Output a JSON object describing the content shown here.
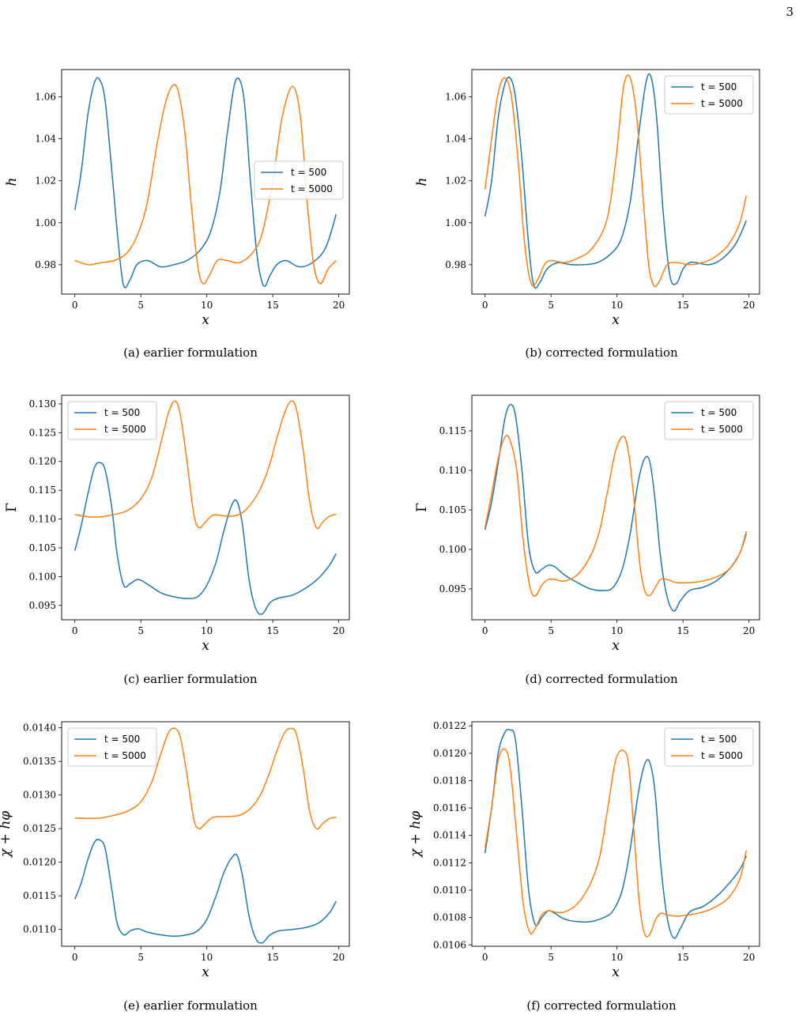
{
  "page_number": "3",
  "colors": {
    "series_500": "#1f77b4",
    "series_5000": "#ff7f0e"
  },
  "panels": [
    {
      "caption": "(a) earlier formulation",
      "ylabel": "h",
      "xlabel": "x"
    },
    {
      "caption": "(b) corrected formulation",
      "ylabel": "h",
      "xlabel": "x"
    },
    {
      "caption": "(c) earlier formulation",
      "ylabel": "Γ",
      "xlabel": "x"
    },
    {
      "caption": "(d) corrected formulation",
      "ylabel": "Γ",
      "xlabel": "x"
    },
    {
      "caption": "(e) earlier formulation",
      "ylabel": "χ + hφ",
      "xlabel": "x"
    },
    {
      "caption": "(f) corrected formulation",
      "ylabel": "χ + hφ",
      "xlabel": "x"
    }
  ],
  "chart_data": [
    {
      "type": "line",
      "xlabel": "x",
      "ylabel": "h",
      "xlim": [
        -1,
        20.8
      ],
      "ylim": [
        0.966,
        1.073
      ],
      "xticks": [
        0,
        5,
        10,
        15,
        20
      ],
      "yticks": [
        0.98,
        1.0,
        1.02,
        1.04,
        1.06
      ],
      "ytick_labels": [
        "0.98",
        "1.00",
        "1.02",
        "1.04",
        "1.06"
      ],
      "legend": "center-right",
      "series": [
        {
          "name": "t = 500",
          "x": [
            0,
            0.5,
            1,
            1.5,
            1.9,
            2.3,
            2.8,
            3.3,
            3.7,
            4.2,
            4.7,
            5.5,
            6.5,
            7.5,
            8.5,
            9.5,
            10.3,
            11,
            11.6,
            12.2,
            12.8,
            13.3,
            13.8,
            14.3,
            14.8,
            15.3,
            16,
            17,
            18,
            19,
            19.8
          ],
          "values": [
            1.006,
            1.025,
            1.052,
            1.067,
            1.068,
            1.058,
            1.025,
            0.99,
            0.97,
            0.973,
            0.98,
            0.982,
            0.979,
            0.98,
            0.982,
            0.987,
            0.996,
            1.015,
            1.045,
            1.068,
            1.06,
            1.02,
            0.985,
            0.97,
            0.975,
            0.98,
            0.982,
            0.979,
            0.981,
            0.988,
            1.004
          ]
        },
        {
          "name": "t = 5000",
          "x": [
            0,
            1,
            2,
            3,
            4,
            4.8,
            5.5,
            6.3,
            7,
            7.7,
            8.3,
            8.8,
            9.3,
            9.7,
            10.2,
            10.8,
            11.5,
            12.5,
            13.5,
            14.2,
            15,
            15.7,
            16.5,
            17.1,
            17.6,
            18.1,
            18.6,
            19.2,
            19.8
          ],
          "values": [
            0.982,
            0.98,
            0.981,
            0.982,
            0.986,
            0.995,
            1.01,
            1.04,
            1.06,
            1.065,
            1.045,
            1.01,
            0.98,
            0.971,
            0.975,
            0.982,
            0.982,
            0.981,
            0.986,
            0.995,
            1.02,
            1.05,
            1.065,
            1.05,
            1.01,
            0.98,
            0.971,
            0.978,
            0.982
          ]
        }
      ]
    },
    {
      "type": "line",
      "xlabel": "x",
      "ylabel": "h",
      "xlim": [
        -1,
        20.8
      ],
      "ylim": [
        0.966,
        1.073
      ],
      "xticks": [
        0,
        5,
        10,
        15,
        20
      ],
      "yticks": [
        0.98,
        1.0,
        1.02,
        1.04,
        1.06
      ],
      "ytick_labels": [
        "0.98",
        "1.00",
        "1.02",
        "1.04",
        "1.06"
      ],
      "legend": "top-right",
      "series": [
        {
          "name": "t = 500",
          "x": [
            0,
            0.5,
            1,
            1.5,
            1.9,
            2.3,
            2.8,
            3.3,
            3.7,
            4.2,
            4.7,
            5.5,
            6.5,
            7.5,
            8.5,
            9.5,
            10.3,
            11,
            11.6,
            12.2,
            12.6,
            13,
            13.5,
            14,
            14.5,
            15,
            15.5,
            16,
            17,
            18,
            19,
            19.8
          ],
          "values": [
            1.003,
            1.02,
            1.05,
            1.066,
            1.069,
            1.06,
            1.03,
            0.99,
            0.97,
            0.972,
            0.978,
            0.981,
            0.98,
            0.98,
            0.981,
            0.985,
            0.992,
            1.01,
            1.04,
            1.067,
            1.069,
            1.05,
            1.005,
            0.975,
            0.971,
            0.978,
            0.981,
            0.981,
            0.98,
            0.983,
            0.99,
            1.001
          ]
        },
        {
          "name": "t = 5000",
          "x": [
            0,
            0.5,
            1,
            1.5,
            2,
            2.5,
            3,
            3.5,
            4,
            4.5,
            5,
            6,
            7,
            8,
            9,
            9.5,
            10,
            10.5,
            11,
            11.5,
            12,
            12.4,
            12.8,
            13.2,
            13.8,
            14.5,
            15.5,
            16.5,
            17.5,
            18.5,
            19.3,
            19.8
          ],
          "values": [
            1.016,
            1.04,
            1.062,
            1.069,
            1.06,
            1.03,
            0.99,
            0.971,
            0.973,
            0.98,
            0.982,
            0.981,
            0.983,
            0.987,
            0.997,
            1.01,
            1.035,
            1.065,
            1.069,
            1.05,
            1.01,
            0.98,
            0.97,
            0.972,
            0.98,
            0.981,
            0.98,
            0.981,
            0.984,
            0.99,
            1.0,
            1.013
          ]
        }
      ]
    },
    {
      "type": "line",
      "xlabel": "x",
      "ylabel": "Γ",
      "xlim": [
        -1,
        20.8
      ],
      "ylim": [
        0.0925,
        0.1315
      ],
      "xticks": [
        0,
        5,
        10,
        15,
        20
      ],
      "yticks": [
        0.095,
        0.1,
        0.105,
        0.11,
        0.115,
        0.12,
        0.125,
        0.13
      ],
      "ytick_labels": [
        "0.095",
        "0.100",
        "0.105",
        "0.110",
        "0.115",
        "0.120",
        "0.125",
        "0.130"
      ],
      "legend": "top-left",
      "series": [
        {
          "name": "t = 500",
          "x": [
            0,
            0.5,
            1,
            1.5,
            1.9,
            2.3,
            2.8,
            3.2,
            3.7,
            4.2,
            4.8,
            5.5,
            6.5,
            7.5,
            8.5,
            9.3,
            10,
            10.7,
            11.3,
            11.9,
            12.3,
            12.7,
            13.2,
            13.7,
            14.2,
            14.8,
            15.5,
            16.5,
            17.5,
            18.5,
            19.3,
            19.8
          ],
          "values": [
            0.1045,
            0.109,
            0.1145,
            0.119,
            0.1198,
            0.1185,
            0.112,
            0.104,
            0.0985,
            0.0988,
            0.0995,
            0.0987,
            0.0972,
            0.0965,
            0.0962,
            0.0965,
            0.0985,
            0.1025,
            0.108,
            0.1125,
            0.113,
            0.109,
            0.0995,
            0.0945,
            0.0935,
            0.0955,
            0.0963,
            0.0968,
            0.098,
            0.0998,
            0.102,
            0.104
          ]
        },
        {
          "name": "t = 5000",
          "x": [
            0,
            1,
            2,
            3,
            4,
            5,
            5.8,
            6.5,
            7.1,
            7.6,
            8,
            8.5,
            9,
            9.4,
            9.9,
            10.5,
            11.5,
            12.5,
            13.3,
            14,
            14.7,
            15.3,
            15.9,
            16.4,
            16.8,
            17.3,
            17.8,
            18.3,
            18.8,
            19.3,
            19.8
          ],
          "values": [
            0.1108,
            0.1104,
            0.1104,
            0.1108,
            0.1115,
            0.1135,
            0.117,
            0.123,
            0.1285,
            0.1305,
            0.128,
            0.12,
            0.111,
            0.1085,
            0.1095,
            0.1107,
            0.1105,
            0.1108,
            0.1125,
            0.115,
            0.119,
            0.124,
            0.1285,
            0.1305,
            0.129,
            0.122,
            0.113,
            0.1085,
            0.1095,
            0.1105,
            0.1108
          ]
        }
      ]
    },
    {
      "type": "line",
      "xlabel": "x",
      "ylabel": "Γ",
      "xlim": [
        -1,
        20.8
      ],
      "ylim": [
        0.0911,
        0.1195
      ],
      "xticks": [
        0,
        5,
        10,
        15,
        20
      ],
      "yticks": [
        0.095,
        0.1,
        0.105,
        0.11,
        0.115
      ],
      "ytick_labels": [
        "0.095",
        "0.100",
        "0.105",
        "0.110",
        "0.115"
      ],
      "legend": "top-right",
      "series": [
        {
          "name": "t = 500",
          "x": [
            0,
            0.5,
            1,
            1.5,
            1.9,
            2.3,
            2.8,
            3.3,
            3.8,
            4.3,
            4.8,
            5.3,
            6,
            7,
            8,
            9,
            9.7,
            10.4,
            11,
            11.6,
            12.1,
            12.5,
            12.9,
            13.3,
            13.8,
            14.3,
            14.8,
            15.5,
            16.5,
            17.5,
            18.5,
            19.3,
            19.8
          ],
          "values": [
            0.1025,
            0.106,
            0.111,
            0.1165,
            0.1183,
            0.117,
            0.11,
            0.1005,
            0.0972,
            0.0975,
            0.098,
            0.0978,
            0.0968,
            0.0958,
            0.095,
            0.0948,
            0.0952,
            0.0975,
            0.102,
            0.1085,
            0.1115,
            0.111,
            0.106,
            0.099,
            0.094,
            0.0922,
            0.0935,
            0.0948,
            0.0952,
            0.096,
            0.0975,
            0.0995,
            0.102
          ]
        },
        {
          "name": "t = 5000",
          "x": [
            0,
            0.5,
            1,
            1.5,
            1.9,
            2.4,
            2.9,
            3.4,
            3.8,
            4.3,
            4.8,
            5.3,
            6,
            7,
            8,
            8.7,
            9.3,
            9.9,
            10.5,
            10.9,
            11.3,
            11.7,
            12.1,
            12.5,
            12.9,
            13.3,
            13.8,
            14.5,
            15.5,
            16.5,
            17.5,
            18.5,
            19.3,
            19.8
          ],
          "values": [
            0.1028,
            0.107,
            0.1115,
            0.1142,
            0.1138,
            0.11,
            0.101,
            0.0953,
            0.0941,
            0.0955,
            0.0962,
            0.0962,
            0.096,
            0.0968,
            0.0992,
            0.1025,
            0.1075,
            0.1125,
            0.1143,
            0.112,
            0.106,
            0.0985,
            0.0948,
            0.0942,
            0.0952,
            0.0962,
            0.0962,
            0.0958,
            0.0958,
            0.096,
            0.0965,
            0.0975,
            0.0995,
            0.1023
          ]
        }
      ]
    },
    {
      "type": "line",
      "xlabel": "x",
      "ylabel": "χ + hφ",
      "xlim": [
        -1,
        20.8
      ],
      "ylim": [
        0.01075,
        0.01409
      ],
      "xticks": [
        0,
        5,
        10,
        15,
        20
      ],
      "yticks": [
        0.011,
        0.0115,
        0.012,
        0.0125,
        0.013,
        0.0135,
        0.014
      ],
      "ytick_labels": [
        "0.0110",
        "0.0115",
        "0.0120",
        "0.0125",
        "0.0130",
        "0.0135",
        "0.0140"
      ],
      "legend": "top-left",
      "series": [
        {
          "name": "t = 500",
          "x": [
            0,
            0.5,
            1,
            1.5,
            1.9,
            2.3,
            2.8,
            3.2,
            3.7,
            4.2,
            4.8,
            5.5,
            6.5,
            7.5,
            8.5,
            9.3,
            10,
            10.7,
            11.3,
            11.9,
            12.3,
            12.7,
            13.2,
            13.7,
            14.2,
            14.8,
            15.5,
            16.5,
            17.5,
            18.5,
            19.3,
            19.8
          ],
          "values": [
            0.01145,
            0.0117,
            0.01205,
            0.0123,
            0.01233,
            0.0122,
            0.0116,
            0.0111,
            0.01092,
            0.01098,
            0.01101,
            0.01096,
            0.01092,
            0.0109,
            0.01092,
            0.01098,
            0.01115,
            0.0115,
            0.01185,
            0.01207,
            0.0121,
            0.0118,
            0.0112,
            0.01087,
            0.0108,
            0.01092,
            0.01098,
            0.011,
            0.01103,
            0.0111,
            0.01125,
            0.01142
          ]
        },
        {
          "name": "t = 5000",
          "x": [
            0,
            1,
            2,
            3,
            4,
            5,
            5.8,
            6.5,
            7.1,
            7.6,
            8,
            8.5,
            9,
            9.4,
            9.9,
            10.5,
            11.5,
            12.5,
            13.3,
            14,
            14.7,
            15.3,
            15.9,
            16.4,
            16.8,
            17.3,
            17.8,
            18.3,
            18.8,
            19.3,
            19.8
          ],
          "values": [
            0.01266,
            0.01265,
            0.01266,
            0.0127,
            0.01276,
            0.0129,
            0.01318,
            0.0136,
            0.01393,
            0.01399,
            0.01385,
            0.0133,
            0.01265,
            0.0125,
            0.01258,
            0.01267,
            0.01268,
            0.0127,
            0.0128,
            0.01298,
            0.0133,
            0.01365,
            0.01393,
            0.01399,
            0.0139,
            0.0134,
            0.01275,
            0.0125,
            0.01258,
            0.01265,
            0.01267
          ]
        }
      ]
    },
    {
      "type": "line",
      "xlabel": "x",
      "ylabel": "χ + hφ",
      "xlim": [
        -1,
        20.8
      ],
      "ylim": [
        0.01059,
        0.01223
      ],
      "xticks": [
        0,
        5,
        10,
        15,
        20
      ],
      "yticks": [
        0.0106,
        0.0108,
        0.011,
        0.0112,
        0.0114,
        0.0116,
        0.0118,
        0.012,
        0.0122
      ],
      "ytick_labels": [
        "0.0106",
        "0.0108",
        "0.0110",
        "0.0112",
        "0.0114",
        "0.0116",
        "0.0118",
        "0.0120",
        "0.0122"
      ],
      "legend": "top-right",
      "series": [
        {
          "name": "t = 500",
          "x": [
            0,
            0.5,
            1,
            1.5,
            1.9,
            2.3,
            2.8,
            3.3,
            3.8,
            4.3,
            4.8,
            5.3,
            6,
            7,
            8,
            9,
            9.7,
            10.4,
            11,
            11.6,
            12.1,
            12.5,
            12.9,
            13.3,
            13.8,
            14.3,
            14.8,
            15.5,
            16.5,
            17.5,
            18.5,
            19.3,
            19.8
          ],
          "values": [
            0.01127,
            0.0116,
            0.012,
            0.01215,
            0.01217,
            0.0121,
            0.0116,
            0.011,
            0.01075,
            0.0108,
            0.01085,
            0.01083,
            0.01079,
            0.01077,
            0.01077,
            0.0108,
            0.01085,
            0.011,
            0.0113,
            0.0117,
            0.01192,
            0.01193,
            0.0117,
            0.0112,
            0.0108,
            0.01065,
            0.01072,
            0.01084,
            0.01088,
            0.01095,
            0.01105,
            0.01115,
            0.01125
          ]
        },
        {
          "name": "t = 5000",
          "x": [
            0,
            0.5,
            1,
            1.5,
            1.9,
            2.4,
            2.9,
            3.4,
            3.8,
            4.3,
            4.8,
            5.3,
            6,
            7,
            8,
            8.7,
            9.3,
            9.9,
            10.5,
            10.9,
            11.3,
            11.7,
            12.1,
            12.5,
            12.9,
            13.3,
            13.8,
            14.5,
            15.5,
            16.5,
            17.5,
            18.5,
            19.3,
            19.8
          ],
          "values": [
            0.01131,
            0.0116,
            0.01195,
            0.01203,
            0.0119,
            0.0114,
            0.0109,
            0.01069,
            0.01072,
            0.01082,
            0.01085,
            0.01084,
            0.01084,
            0.0109,
            0.01105,
            0.01125,
            0.0116,
            0.01195,
            0.01202,
            0.0119,
            0.0114,
            0.0109,
            0.01068,
            0.01068,
            0.01078,
            0.01083,
            0.01082,
            0.01081,
            0.01082,
            0.01084,
            0.01088,
            0.01095,
            0.01108,
            0.01129
          ]
        }
      ]
    }
  ]
}
